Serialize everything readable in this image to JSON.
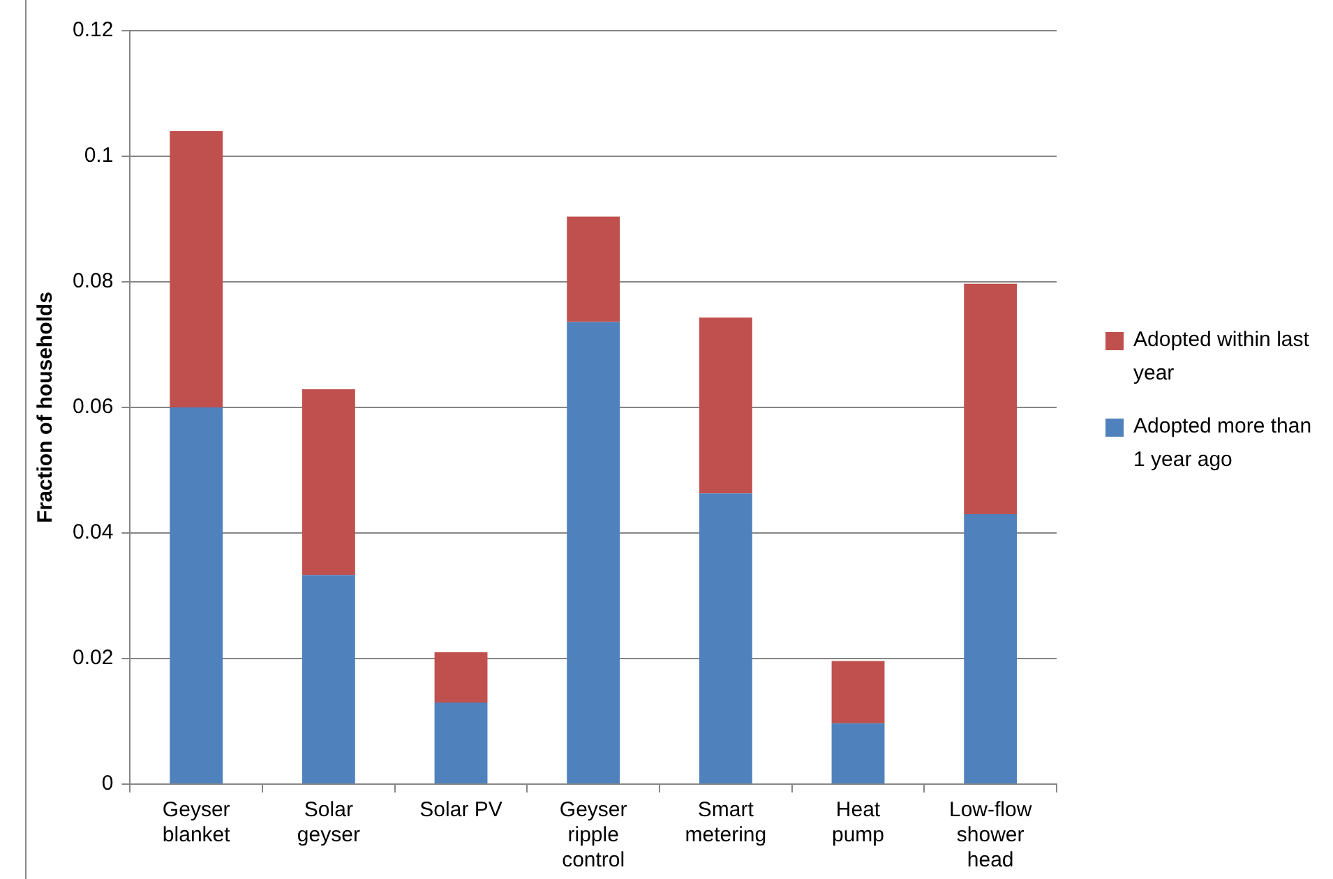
{
  "chart_data": {
    "type": "bar",
    "stacked": true,
    "ylabel": "Fraction of households",
    "categories": [
      "Geyser blanket",
      "Solar geyser",
      "Solar PV",
      "Geyser ripple control",
      "Smart metering",
      "Heat pump",
      "Low-flow shower head"
    ],
    "series": [
      {
        "name": "Adopted more than 1 year ago",
        "color": "#4f81bd",
        "values": [
          0.06,
          0.0333,
          0.013,
          0.0736,
          0.0463,
          0.0097,
          0.043
        ]
      },
      {
        "name": "Adopted within last year",
        "color": "#c0504d",
        "values": [
          0.044,
          0.0296,
          0.008,
          0.0168,
          0.028,
          0.0099,
          0.0367
        ]
      }
    ],
    "ylim": [
      0,
      0.12
    ],
    "yticks": [
      0,
      0.02,
      0.04,
      0.06,
      0.08,
      0.1,
      0.12
    ],
    "grid": "y",
    "legend": "right"
  }
}
